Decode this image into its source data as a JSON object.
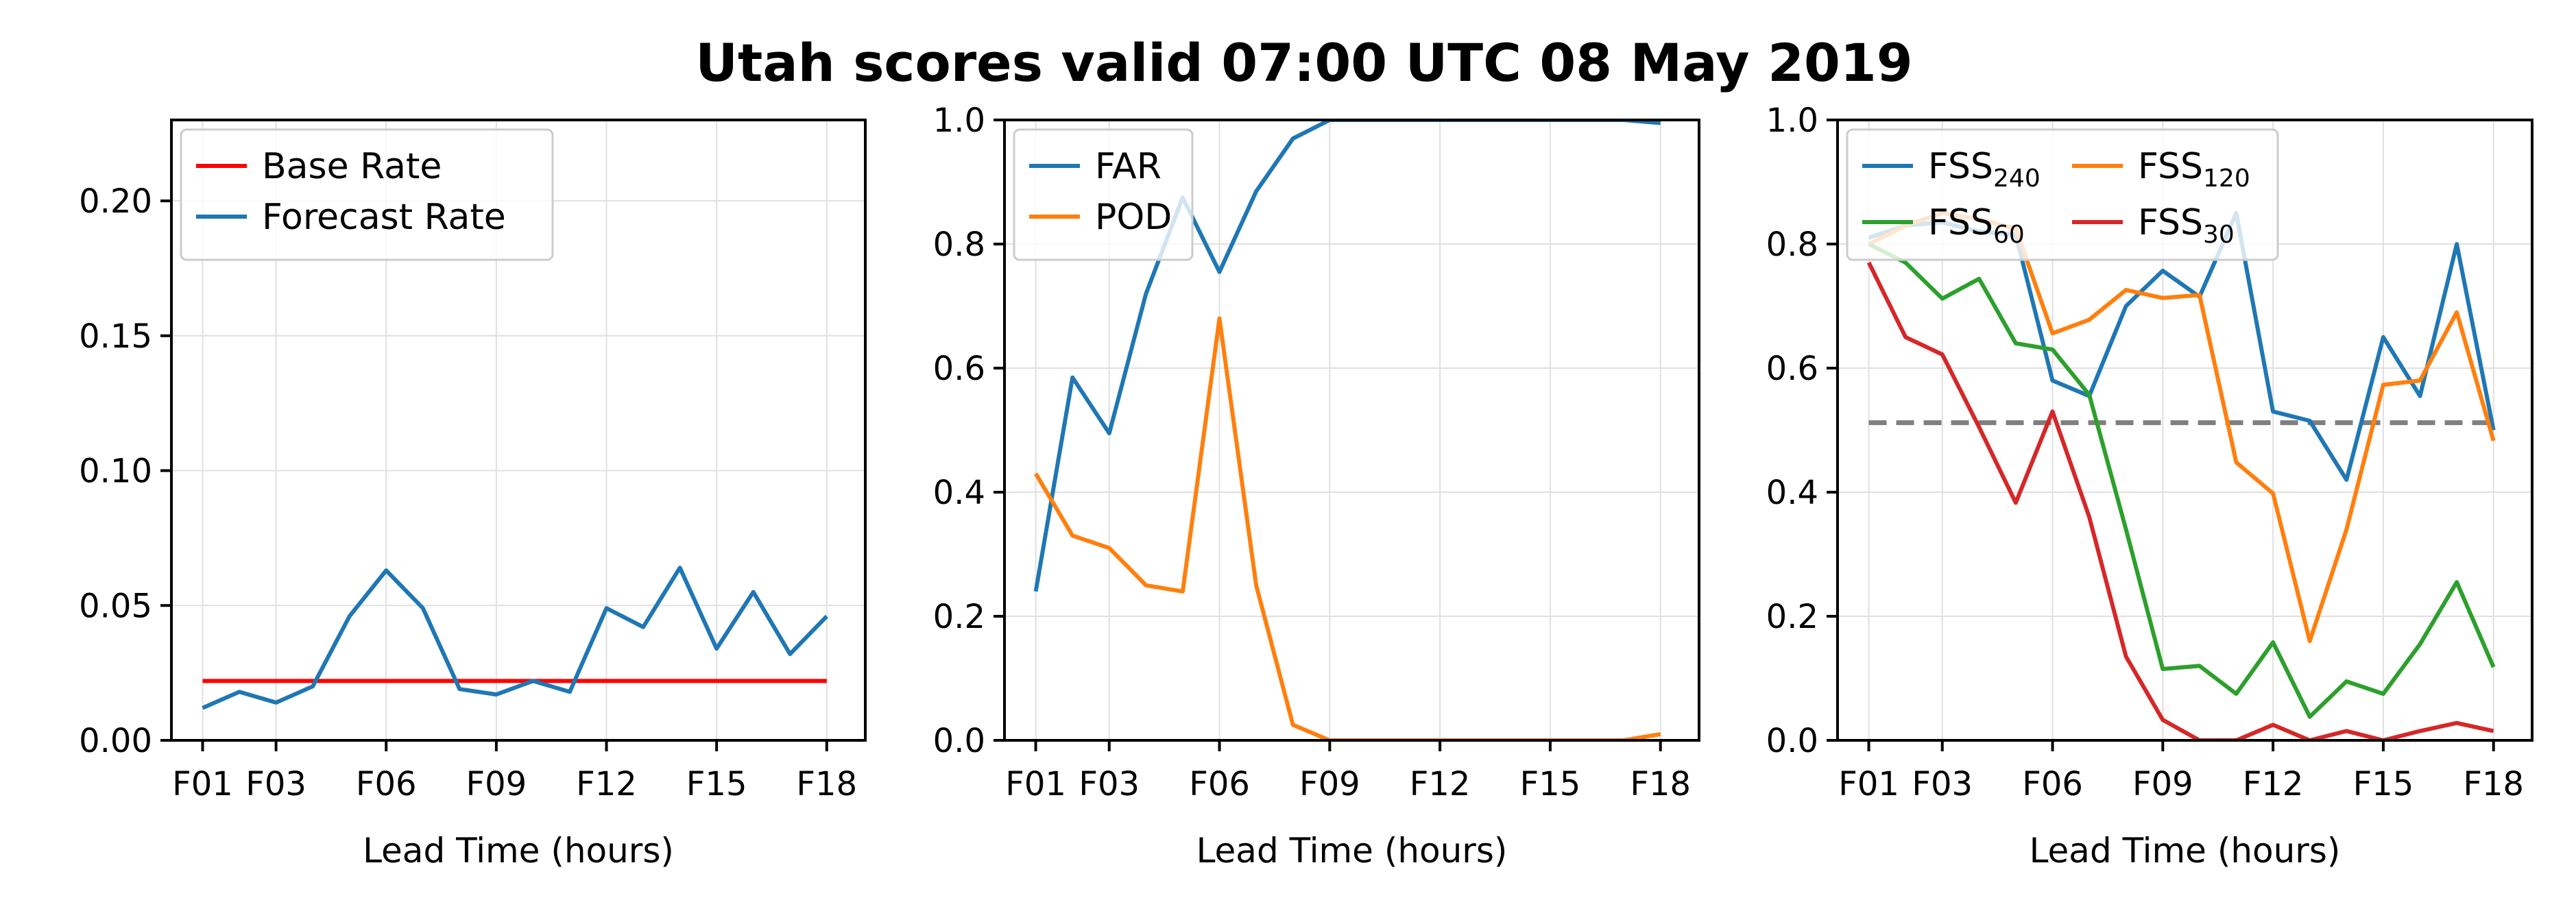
{
  "title": "Utah scores valid 07:00 UTC 08 May 2019",
  "chart_data": [
    {
      "type": "line",
      "title": "",
      "xlabel": "Lead Time (hours)",
      "ylabel": "",
      "x": [
        1,
        2,
        3,
        4,
        5,
        6,
        7,
        8,
        9,
        10,
        11,
        12,
        13,
        14,
        15,
        16,
        17,
        18
      ],
      "xticks": [
        1,
        3,
        6,
        9,
        12,
        15,
        18
      ],
      "xtick_labels": [
        "F01",
        "F03",
        "F06",
        "F09",
        "F12",
        "F15",
        "F18"
      ],
      "xlim": [
        0.15,
        19.05
      ],
      "ylim": [
        0,
        0.23
      ],
      "yticks": [
        0.0,
        0.05,
        0.1,
        0.15,
        0.2
      ],
      "ytick_labels": [
        "0.00",
        "0.05",
        "0.10",
        "0.15",
        "0.20"
      ],
      "grid": true,
      "legend_position": "upper-left",
      "legend_columns": 1,
      "series": [
        {
          "name": "Base Rate",
          "color": "#ff0000",
          "values": [
            0.022,
            0.022,
            0.022,
            0.022,
            0.022,
            0.022,
            0.022,
            0.022,
            0.022,
            0.022,
            0.022,
            0.022,
            0.022,
            0.022,
            0.022,
            0.022,
            0.022,
            0.022
          ]
        },
        {
          "name": "Forecast Rate",
          "color": "#1f77b4",
          "values": [
            0.012,
            0.018,
            0.014,
            0.02,
            0.046,
            0.063,
            0.049,
            0.019,
            0.017,
            0.022,
            0.018,
            0.049,
            0.042,
            0.064,
            0.034,
            0.055,
            0.032,
            0.046
          ]
        }
      ]
    },
    {
      "type": "line",
      "title": "",
      "xlabel": "Lead Time (hours)",
      "ylabel": "",
      "x": [
        1,
        2,
        3,
        4,
        5,
        6,
        7,
        8,
        9,
        10,
        11,
        12,
        13,
        14,
        15,
        16,
        17,
        18
      ],
      "xticks": [
        1,
        3,
        6,
        9,
        12,
        15,
        18
      ],
      "xtick_labels": [
        "F01",
        "F03",
        "F06",
        "F09",
        "F12",
        "F15",
        "F18"
      ],
      "xlim": [
        0.15,
        19.05
      ],
      "ylim": [
        0,
        1.0
      ],
      "yticks": [
        0.0,
        0.2,
        0.4,
        0.6,
        0.8,
        1.0
      ],
      "ytick_labels": [
        "0.0",
        "0.2",
        "0.4",
        "0.6",
        "0.8",
        "1.0"
      ],
      "grid": true,
      "legend_position": "upper-left",
      "legend_columns": 1,
      "series": [
        {
          "name": "FAR",
          "color": "#1f77b4",
          "values": [
            0.24,
            0.585,
            0.495,
            0.72,
            0.875,
            0.755,
            0.885,
            0.97,
            1.0,
            1.0,
            1.0,
            1.0,
            1.0,
            1.0,
            1.0,
            1.0,
            1.0,
            0.995
          ]
        },
        {
          "name": "POD",
          "color": "#ff7f0e",
          "values": [
            0.43,
            0.33,
            0.31,
            0.25,
            0.24,
            0.68,
            0.25,
            0.025,
            0.0,
            0.0,
            0.0,
            0.0,
            0.0,
            0.0,
            0.0,
            0.0,
            0.0,
            0.01
          ]
        }
      ]
    },
    {
      "type": "line",
      "title": "",
      "xlabel": "Lead Time (hours)",
      "ylabel": "",
      "x": [
        1,
        2,
        3,
        4,
        5,
        6,
        7,
        8,
        9,
        10,
        11,
        12,
        13,
        14,
        15,
        16,
        17,
        18
      ],
      "xticks": [
        1,
        3,
        6,
        9,
        12,
        15,
        18
      ],
      "xtick_labels": [
        "F01",
        "F03",
        "F06",
        "F09",
        "F12",
        "F15",
        "F18"
      ],
      "xlim": [
        0.15,
        19.05
      ],
      "ylim": [
        0,
        1.0
      ],
      "yticks": [
        0.0,
        0.2,
        0.4,
        0.6,
        0.8,
        1.0
      ],
      "ytick_labels": [
        "0.0",
        "0.2",
        "0.4",
        "0.6",
        "0.8",
        "1.0"
      ],
      "grid": true,
      "legend_position": "upper-left",
      "legend_columns": 2,
      "reference_line": {
        "value": 0.512,
        "color": "#7f7f7f",
        "style": "dashed"
      },
      "series": [
        {
          "name": "FSS",
          "subscript": "240",
          "color": "#1f77b4",
          "values": [
            0.81,
            0.83,
            0.835,
            0.82,
            0.815,
            0.58,
            0.555,
            0.7,
            0.757,
            0.715,
            0.85,
            0.53,
            0.515,
            0.42,
            0.65,
            0.555,
            0.8,
            0.5
          ]
        },
        {
          "name": "FSS",
          "subscript": "120",
          "color": "#ff7f0e",
          "values": [
            0.8,
            0.83,
            0.85,
            0.84,
            0.825,
            0.656,
            0.678,
            0.726,
            0.713,
            0.718,
            0.448,
            0.398,
            0.16,
            0.34,
            0.573,
            0.58,
            0.69,
            0.483
          ]
        },
        {
          "name": "FSS",
          "subscript": "60",
          "color": "#2ca02c",
          "values": [
            0.8,
            0.77,
            0.712,
            0.744,
            0.64,
            0.63,
            0.557,
            0.34,
            0.115,
            0.12,
            0.075,
            0.158,
            0.038,
            0.095,
            0.075,
            0.155,
            0.255,
            0.118
          ]
        },
        {
          "name": "FSS",
          "subscript": "30",
          "color": "#d62728",
          "values": [
            0.77,
            0.65,
            0.622,
            0.505,
            0.383,
            0.53,
            0.36,
            0.135,
            0.033,
            0.0,
            0.0,
            0.025,
            0.0,
            0.015,
            0.0,
            0.015,
            0.028,
            0.015
          ]
        }
      ]
    }
  ]
}
